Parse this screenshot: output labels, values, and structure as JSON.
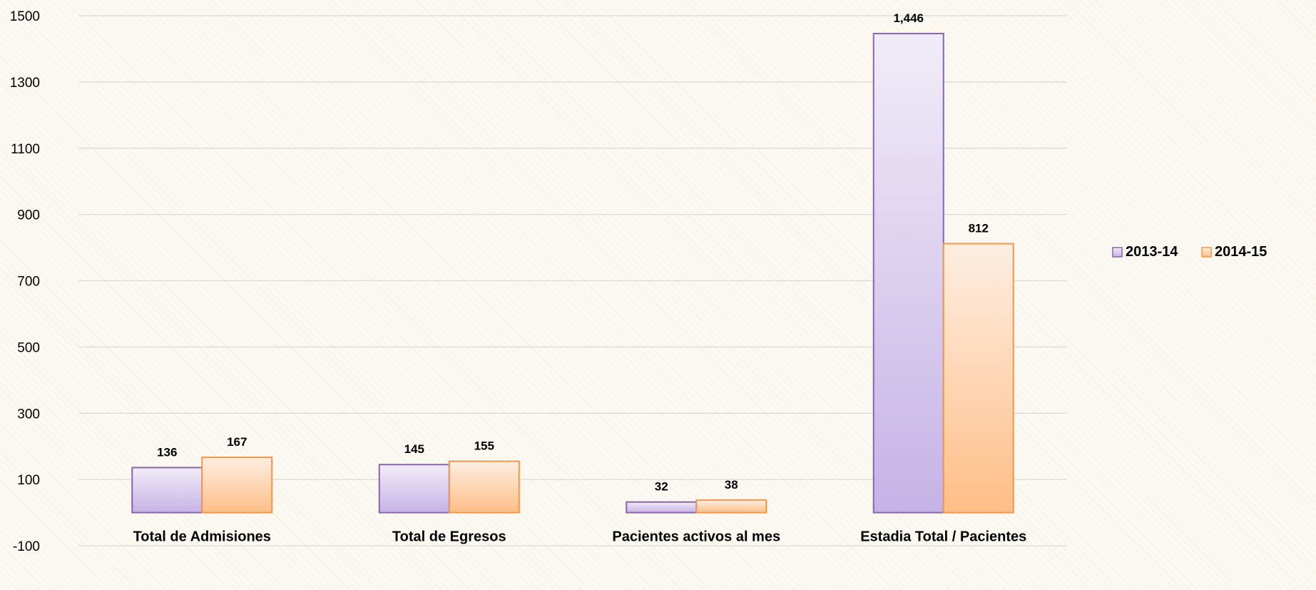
{
  "chart_data": {
    "type": "bar",
    "categories": [
      "Total de Admisiones",
      "Total de Egresos",
      "Pacientes activos al mes",
      "Estadia Total / Pacientes"
    ],
    "series": [
      {
        "name": "2013-14",
        "values": [
          136,
          145,
          32,
          1446
        ],
        "labels": [
          "136",
          "145",
          "32",
          "1,446"
        ]
      },
      {
        "name": "2014-15",
        "values": [
          167,
          155,
          38,
          812
        ],
        "labels": [
          "167",
          "155",
          "38",
          "812"
        ]
      }
    ],
    "yticks": [
      "1500",
      "1300",
      "1100",
      "900",
      "700",
      "500",
      "300",
      "100",
      "-100"
    ],
    "ytick_values": [
      1500,
      1300,
      1100,
      900,
      700,
      500,
      300,
      100,
      -100
    ],
    "ylim": [
      -100,
      1500
    ],
    "baseline": 0,
    "grid": true,
    "legend_position": "right",
    "colors": {
      "series_fill_top": [
        "#f1ecf8",
        "#fdeee2"
      ],
      "series_fill_bottom": [
        "#c6b3e6",
        "#ffbe87"
      ],
      "series_stroke": [
        "#8a64b0",
        "#f2974a"
      ],
      "grid": "#d9d9d9",
      "axis_text": "#000000"
    }
  }
}
